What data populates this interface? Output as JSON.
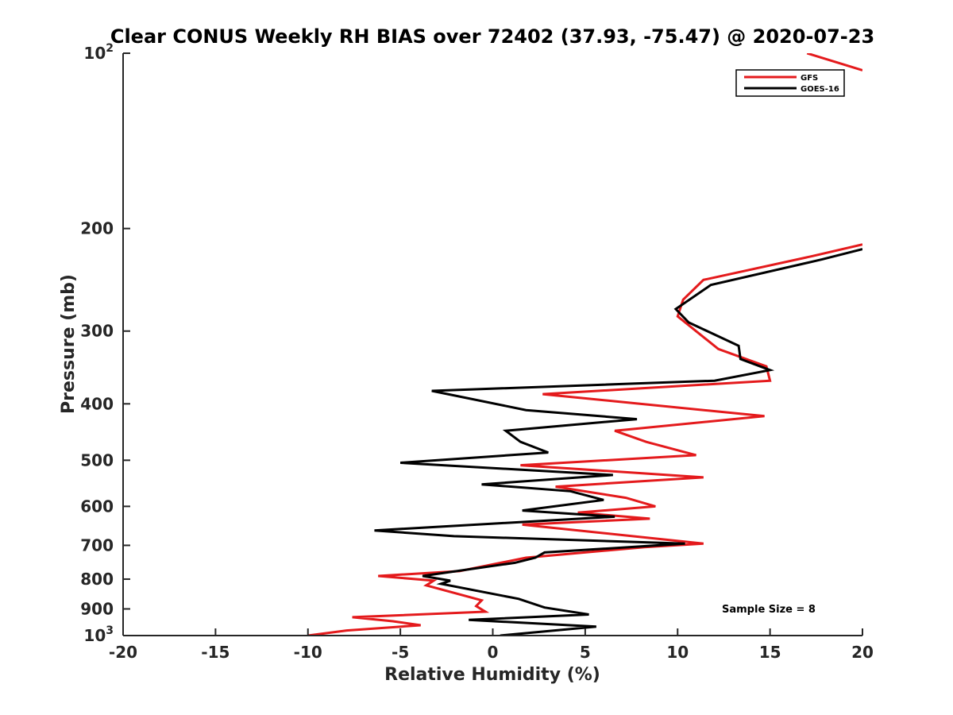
{
  "chart_data": {
    "type": "line",
    "title": "Clear CONUS Weekly RH BIAS over 72402 (37.93, -75.47) @ 2020-07-23",
    "xlabel": "Relative Humidity (%)",
    "ylabel": "Pressure (mb)",
    "xlim": [
      -20,
      20
    ],
    "ylim": [
      100,
      1000
    ],
    "yscale": "log",
    "ydirection": "reverse",
    "x_ticks": [
      -20,
      -15,
      -10,
      -5,
      0,
      5,
      10,
      15,
      20
    ],
    "x_tick_labels": [
      "-20",
      "-15",
      "-10",
      "-5",
      "0",
      "5",
      "10",
      "15",
      "20"
    ],
    "y_ticks": [
      {
        "value": 100,
        "base": "10",
        "exp": "2"
      },
      {
        "value": 200,
        "label": "200"
      },
      {
        "value": 300,
        "label": "300"
      },
      {
        "value": 400,
        "label": "400"
      },
      {
        "value": 500,
        "label": "500"
      },
      {
        "value": 600,
        "label": "600"
      },
      {
        "value": 700,
        "label": "700"
      },
      {
        "value": 800,
        "label": "800"
      },
      {
        "value": 900,
        "label": "900"
      },
      {
        "value": 1000,
        "base": "10",
        "exp": "3"
      }
    ],
    "grid": false,
    "legend_position": "top-right",
    "annotation": "Sample Size = 8",
    "series": [
      {
        "name": "GFS",
        "color": "#e41a1c",
        "segments": [
          [
            [
              17,
              100
            ],
            [
              20.0,
              107
            ]
          ],
          [
            [
              20.0,
              213
            ],
            [
              17.3,
              223
            ],
            [
              11.4,
              245
            ],
            [
              10.3,
              265
            ],
            [
              10.0,
              283
            ],
            [
              12.2,
              322
            ],
            [
              14.8,
              345
            ],
            [
              15.0,
              365
            ],
            [
              2.7,
              385
            ],
            [
              14.7,
              420
            ],
            [
              6.6,
              445
            ],
            [
              8.3,
              465
            ],
            [
              11.0,
              490
            ],
            [
              1.5,
              510
            ],
            [
              11.4,
              535
            ],
            [
              3.4,
              555
            ],
            [
              7.2,
              580
            ],
            [
              8.8,
              600
            ],
            [
              4.6,
              615
            ],
            [
              8.5,
              630
            ],
            [
              1.6,
              645
            ],
            [
              11.4,
              695
            ],
            [
              8.2,
              705
            ],
            [
              1.8,
              735
            ],
            [
              -1.8,
              775
            ],
            [
              -6.2,
              790
            ],
            [
              -3.2,
              805
            ],
            [
              -3.6,
              820
            ],
            [
              -0.6,
              870
            ],
            [
              -0.9,
              890
            ],
            [
              -0.4,
              910
            ],
            [
              -7.6,
              930
            ],
            [
              -5.4,
              945
            ],
            [
              -3.9,
              960
            ],
            [
              -7.9,
              980
            ],
            [
              -10.0,
              1000
            ]
          ]
        ]
      },
      {
        "name": "GOES-16",
        "color": "#000000",
        "segments": [
          [
            [
              20.0,
              217
            ],
            [
              17.8,
              226
            ],
            [
              11.8,
              250
            ],
            [
              9.9,
              275
            ],
            [
              10.6,
              290
            ],
            [
              13.3,
              318
            ],
            [
              13.4,
              335
            ],
            [
              15.0,
              350
            ],
            [
              12.0,
              365
            ],
            [
              -3.3,
              380
            ],
            [
              1.8,
              410
            ],
            [
              7.8,
              425
            ],
            [
              0.7,
              445
            ],
            [
              1.5,
              465
            ],
            [
              3.0,
              485
            ],
            [
              -5.0,
              505
            ],
            [
              6.5,
              530
            ],
            [
              -0.6,
              550
            ],
            [
              4.2,
              565
            ],
            [
              6.0,
              585
            ],
            [
              1.6,
              610
            ],
            [
              6.6,
              625
            ],
            [
              -6.4,
              660
            ],
            [
              -2.1,
              675
            ],
            [
              10.4,
              695
            ],
            [
              2.8,
              720
            ],
            [
              2.3,
              735
            ],
            [
              1.2,
              750
            ],
            [
              -3.8,
              790
            ],
            [
              -2.3,
              805
            ],
            [
              -2.8,
              815
            ],
            [
              1.4,
              865
            ],
            [
              2.8,
              895
            ],
            [
              5.2,
              920
            ],
            [
              -1.3,
              940
            ],
            [
              5.6,
              965
            ],
            [
              0.4,
              1000
            ]
          ]
        ]
      }
    ]
  }
}
